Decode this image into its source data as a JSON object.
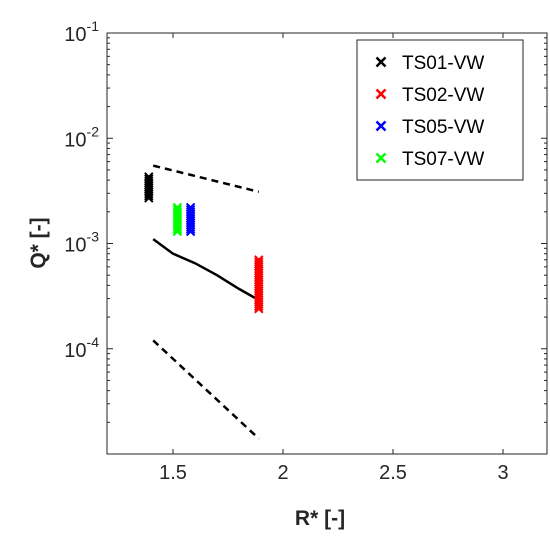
{
  "chart_data": {
    "type": "scatter",
    "xlabel": "R* [-]",
    "ylabel": "Q* [-]",
    "xlim": [
      1.2,
      3.2
    ],
    "ylim": [
      1e-05,
      0.1
    ],
    "yscale": "log",
    "x_ticks": [
      1.5,
      2,
      2.5,
      3
    ],
    "x_tick_labels": [
      "1.5",
      "2",
      "2.5",
      "3"
    ],
    "y_ticks": [
      0.0001,
      0.001,
      0.01,
      0.1
    ],
    "y_tick_labels": [
      {
        "base": "10",
        "exp": "-4"
      },
      {
        "base": "10",
        "exp": "-3"
      },
      {
        "base": "10",
        "exp": "-2"
      },
      {
        "base": "10",
        "exp": "-1"
      }
    ],
    "grid": false,
    "legend_position": "top-right",
    "series": [
      {
        "name": "TS01-VW",
        "color": "#000000",
        "marker": "x",
        "x": 1.39,
        "y_min": 0.0027,
        "y_max": 0.0043
      },
      {
        "name": "TS02-VW",
        "color": "#ff0000",
        "marker": "x",
        "x": 1.89,
        "y_min": 0.00024,
        "y_max": 0.0007
      },
      {
        "name": "TS05-VW",
        "color": "#0000ff",
        "marker": "x",
        "x": 1.58,
        "y_min": 0.0013,
        "y_max": 0.0022
      },
      {
        "name": "TS07-VW",
        "color": "#00ff00",
        "marker": "x",
        "x": 1.52,
        "y_min": 0.0013,
        "y_max": 0.0022
      }
    ],
    "lines": [
      {
        "style": "solid",
        "color": "#000000",
        "points": [
          [
            1.41,
            0.0011
          ],
          [
            1.5,
            0.0008
          ],
          [
            1.6,
            0.00065
          ],
          [
            1.7,
            0.0005
          ],
          [
            1.8,
            0.00037
          ],
          [
            1.89,
            0.00029
          ]
        ]
      },
      {
        "style": "dashed",
        "color": "#000000",
        "points": [
          [
            1.41,
            0.0055
          ],
          [
            1.89,
            0.0031
          ]
        ]
      },
      {
        "style": "dashed",
        "color": "#000000",
        "points": [
          [
            1.41,
            0.00012
          ],
          [
            1.89,
            1.4e-05
          ]
        ]
      }
    ]
  }
}
